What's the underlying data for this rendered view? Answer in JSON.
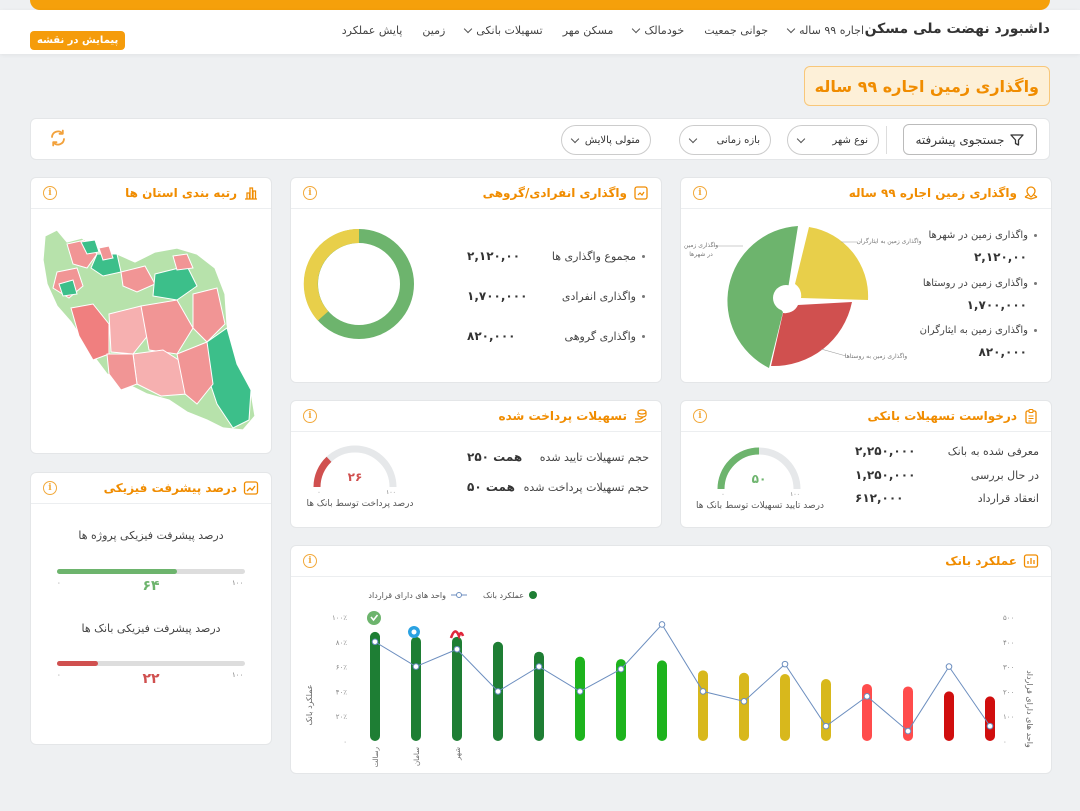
{
  "nav": {
    "brand": "داشبورد نهضت ملی مسکن",
    "items": [
      "اجاره ۹۹ ساله",
      "جوانی جمعیت",
      "خودمالک",
      "مسکن مهر",
      "تسهیلات بانکی",
      "زمین",
      "پایش عملکرد"
    ],
    "map_button": "پیمایش در نقشه"
  },
  "page_title": "واگذاری زمین اجاره ۹۹ ساله",
  "filters": {
    "advanced_search": "جستجوی پیشرفته",
    "city_type": "نوع شهر",
    "time_range": "بازه زمانی",
    "custodian": "متولی پالایش"
  },
  "land_card": {
    "title": "واگذاری زمین اجاره ۹۹ ساله",
    "stats": [
      {
        "label": "واگذاری زمین در شهرها",
        "value": "۲,۱۲۰,۰۰"
      },
      {
        "label": "واگذاری زمین در روستاها",
        "value": "۱,۷۰۰,۰۰۰"
      },
      {
        "label": "واگذاری زمین به ایثارگران",
        "value": "۸۲۰,۰۰۰"
      }
    ],
    "pie_labels": {
      "cities_line1": "واگذاری زمین",
      "cities_line2": "در شهرها",
      "martyrs": "واگذاری زمین به ایثارگران",
      "villages": "واگذاری زمین به روستاها"
    },
    "colors": {
      "cities": "#6db46d",
      "martyrs": "#e8cf4a",
      "villages": "#d0504f"
    }
  },
  "assign_card": {
    "title": "واگذاری انفرادی/گروهی",
    "stats": [
      {
        "label": "مجموع واگذاری ها",
        "value": "۲,۱۲۰,۰۰"
      },
      {
        "label": "واگذاری انفرادی",
        "value": "۱,۷۰۰,۰۰۰"
      },
      {
        "label": "واگذاری گروهی",
        "value": "۸۲۰,۰۰۰"
      }
    ]
  },
  "ranking_card": {
    "title": "رتبه بندی استان ها"
  },
  "bank_request": {
    "title": "درخواست تسهیلات بانکی",
    "stats": [
      {
        "label": "معرفی شده به بانک",
        "value": "۲,۲۵۰,۰۰۰"
      },
      {
        "label": "در حال بررسی",
        "value": "۱,۲۵۰,۰۰۰"
      },
      {
        "label": "انعقاد قرارداد",
        "value": "۶۱۲,۰۰۰"
      }
    ],
    "gauge": {
      "value": "۵۰",
      "min": "۰",
      "max": "۱۰۰",
      "caption": "درصد تایید تسهیلات توسط بانک ها",
      "fraction": 0.5,
      "color": "#6db46d"
    }
  },
  "paid_card": {
    "title": "تسهیلات پرداخت شده",
    "stats": [
      {
        "label": "حجم تسهیلات تایید شده",
        "value": "۲۵۰ همت"
      },
      {
        "label": "حجم تسهیلات پرداخت شده",
        "value": "۵۰ همت"
      }
    ],
    "gauge": {
      "value": "۲۶",
      "min": "۰",
      "max": "۱۰۰",
      "caption": "درصد پرداخت توسط بانک ها",
      "fraction": 0.26,
      "color": "#d0504f"
    }
  },
  "progress_card": {
    "title": "درصد پیشرفت فیزیکی",
    "bars": [
      {
        "label": "درصد پیشرفت فیزیکی پروژه ها",
        "value": "۶۴",
        "fraction": 0.64,
        "color": "#6db46d",
        "min": "۰",
        "max": "۱۰۰"
      },
      {
        "label": "درصد پیشرفت فیزیکی بانک ها",
        "value": "۲۲",
        "fraction": 0.22,
        "color": "#d0504f",
        "min": "۰",
        "max": "۱۰۰"
      }
    ]
  },
  "bank_perf": {
    "title": "عملکرد بانک",
    "chart_data": {
      "type": "bar",
      "legend": [
        {
          "name": "عملکرد بانک",
          "color": "#1e7e34"
        },
        {
          "name": "واحد های دارای قرارداد",
          "color": "#6c8ebf"
        }
      ],
      "ylabel": "عملکرد بانک",
      "y2label": "واحد های دارای قرارداد",
      "y_ticks": [
        "۰",
        "۲۰٪",
        "۴۰٪",
        "۶۰٪",
        "۸۰٪",
        "۱۰۰٪"
      ],
      "y2_ticks": [
        "۰",
        "۱۰۰",
        "۲۰۰",
        "۳۰۰",
        "۴۰۰",
        "۵۰۰"
      ],
      "ylim": [
        0,
        100
      ],
      "y2lim": [
        0,
        500
      ],
      "categories": [
        "رسالت",
        "سامان",
        "شهر",
        "",
        "",
        "",
        "",
        "",
        "",
        "",
        "",
        "",
        "",
        "",
        "",
        ""
      ],
      "series": [
        {
          "name": "عملکرد بانک",
          "values": [
            88,
            84,
            84,
            80,
            72,
            68,
            66,
            65,
            57,
            55,
            54,
            50,
            46,
            44,
            40,
            36
          ]
        },
        {
          "name": "واحد های دارای قرارداد",
          "values": [
            400,
            300,
            370,
            200,
            300,
            200,
            290,
            470,
            200,
            160,
            310,
            60,
            180,
            40,
            300,
            60
          ]
        }
      ],
      "bar_colors": [
        "#1e7e34",
        "#1e7e34",
        "#1e7e34",
        "#1e7e34",
        "#1e7e34",
        "#1db31d",
        "#1db31d",
        "#1db31d",
        "#d8b81c",
        "#d8b81c",
        "#d8b81c",
        "#d8b81c",
        "#ff4c4c",
        "#ff4c4c",
        "#d00e0e",
        "#d00e0e"
      ]
    }
  }
}
